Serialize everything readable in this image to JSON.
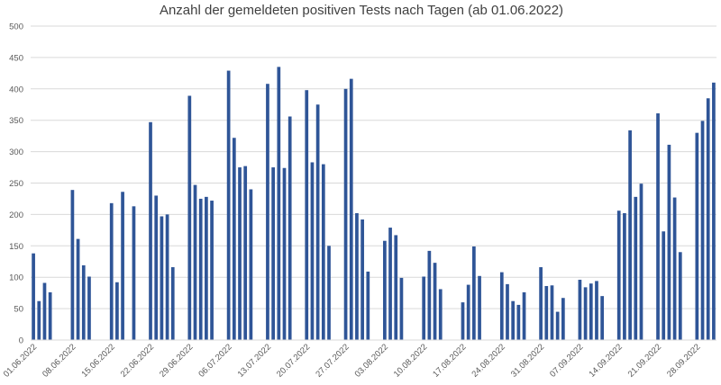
{
  "chart_data": {
    "type": "bar",
    "title": "Anzahl der gemeldeten positiven Tests nach Tagen (ab 01.06.2022)",
    "xlabel": "",
    "ylabel": "",
    "ylim": [
      0,
      500
    ],
    "yticks": [
      0,
      50,
      100,
      150,
      200,
      250,
      300,
      350,
      400,
      450,
      500
    ],
    "grid": true,
    "legend": "none",
    "bar_color": "#2f5597",
    "x_tick_labels": [
      "01.06.2022",
      "08.06.2022",
      "15.06.2022",
      "22.06.2022",
      "29.06.2022",
      "06.07.2022",
      "13.07.2022",
      "20.07.2022",
      "27.07.2022",
      "03.08.2022",
      "10.08.2022",
      "17.08.2022",
      "24.08.2022",
      "31.08.2022",
      "07.09.2022",
      "14.09.2022",
      "21.09.2022",
      "28.09.2022"
    ],
    "values": [
      138,
      62,
      91,
      76,
      null,
      null,
      null,
      239,
      161,
      119,
      101,
      null,
      null,
      null,
      218,
      92,
      236,
      null,
      213,
      null,
      null,
      347,
      230,
      197,
      200,
      116,
      null,
      null,
      389,
      247,
      225,
      228,
      222,
      null,
      null,
      429,
      322,
      275,
      277,
      240,
      null,
      null,
      408,
      275,
      435,
      274,
      356,
      null,
      null,
      398,
      283,
      375,
      280,
      150,
      null,
      null,
      400,
      416,
      202,
      192,
      109,
      null,
      null,
      158,
      179,
      167,
      99,
      null,
      null,
      null,
      101,
      142,
      123,
      81,
      null,
      null,
      null,
      60,
      88,
      149,
      102,
      null,
      null,
      null,
      108,
      89,
      62,
      56,
      76,
      null,
      null,
      116,
      86,
      87,
      45,
      67,
      null,
      null,
      96,
      84,
      90,
      94,
      70,
      null,
      null,
      206,
      202,
      334,
      228,
      249,
      null,
      null,
      361,
      173,
      311,
      227,
      140,
      null,
      null,
      330,
      349,
      385,
      410
    ]
  }
}
